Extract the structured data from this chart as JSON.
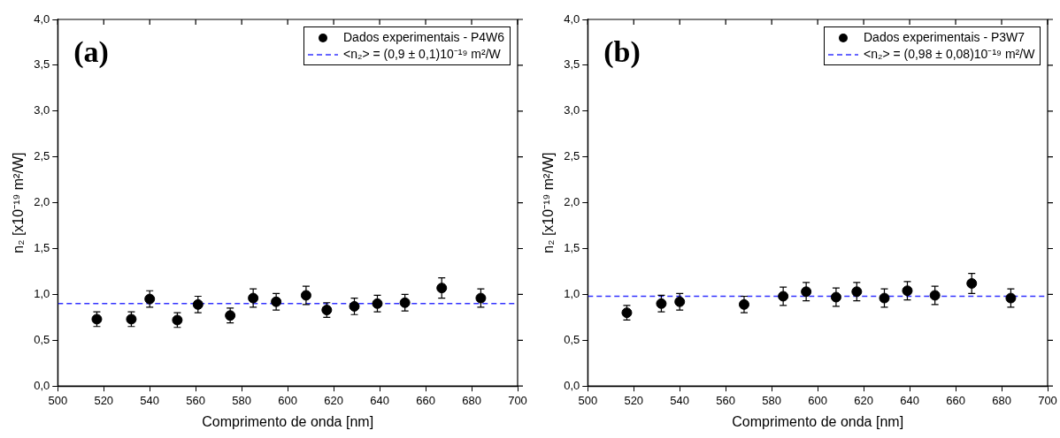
{
  "chart_data": [
    {
      "type": "scatter",
      "annotations": [
        "(a)"
      ],
      "xlabel": "Comprimento de onda [nm]",
      "ylabel": "n₂ [x10⁻¹⁹ m²/W]",
      "x": [
        517,
        532,
        540,
        552,
        561,
        575,
        585,
        595,
        608,
        617,
        629,
        639,
        651,
        667,
        684
      ],
      "series": [
        {
          "name": "Dados experimentais - P4W6",
          "color": "#000000",
          "values": [
            0.73,
            0.73,
            0.95,
            0.72,
            0.89,
            0.77,
            0.96,
            0.92,
            0.99,
            0.83,
            0.87,
            0.9,
            0.91,
            1.07,
            0.96
          ],
          "errors": [
            0.08,
            0.08,
            0.09,
            0.08,
            0.09,
            0.08,
            0.1,
            0.09,
            0.1,
            0.08,
            0.09,
            0.09,
            0.09,
            0.11,
            0.1
          ]
        }
      ],
      "ref_lines": [
        {
          "axis": "y",
          "value": 0.9,
          "label": "<n₂> = (0,9 ± 0,1)10⁻¹⁹ m²/W",
          "color": "#3333ff",
          "line_style": "dashed"
        }
      ],
      "xlim": [
        500,
        700
      ],
      "xticks": [
        500,
        520,
        540,
        560,
        580,
        600,
        620,
        640,
        660,
        680,
        700
      ],
      "ylim": [
        0,
        4
      ],
      "yticks": [
        {
          "value": 0,
          "label": "0,0"
        },
        {
          "value": 0.5,
          "label": "0,5"
        },
        {
          "value": 1,
          "label": "1,0"
        },
        {
          "value": 1.5,
          "label": "1,5"
        },
        {
          "value": 2,
          "label": "2,0"
        },
        {
          "value": 2.5,
          "label": "2,5"
        },
        {
          "value": 3,
          "label": "3,0"
        },
        {
          "value": 3.5,
          "label": "3,5"
        },
        {
          "value": 4,
          "label": "4,0"
        }
      ],
      "marker": "circle",
      "grid": false,
      "legend": "top right"
    },
    {
      "type": "scatter",
      "annotations": [
        "(b)"
      ],
      "xlabel": "Comprimento de onda [nm]",
      "ylabel": "n₂ [x10⁻¹⁹ m²/W]",
      "x": [
        517,
        532,
        540,
        568,
        585,
        595,
        608,
        617,
        629,
        639,
        651,
        667,
        684
      ],
      "series": [
        {
          "name": "Dados experimentais - P3W7",
          "color": "#000000",
          "values": [
            0.8,
            0.9,
            0.92,
            0.89,
            0.98,
            1.03,
            0.97,
            1.03,
            0.96,
            1.04,
            0.99,
            1.12,
            0.96
          ],
          "errors": [
            0.08,
            0.09,
            0.09,
            0.09,
            0.1,
            0.1,
            0.1,
            0.1,
            0.1,
            0.1,
            0.1,
            0.11,
            0.1
          ]
        }
      ],
      "ref_lines": [
        {
          "axis": "y",
          "value": 0.98,
          "label": "<n₂> = (0,98 ± 0,08)10⁻¹⁹ m²/W",
          "color": "#3333ff",
          "line_style": "dashed"
        }
      ],
      "xlim": [
        500,
        700
      ],
      "xticks": [
        500,
        520,
        540,
        560,
        580,
        600,
        620,
        640,
        660,
        680,
        700
      ],
      "ylim": [
        0,
        4
      ],
      "yticks": [
        {
          "value": 0,
          "label": "0,0"
        },
        {
          "value": 0.5,
          "label": "0,5"
        },
        {
          "value": 1,
          "label": "1,0"
        },
        {
          "value": 1.5,
          "label": "1,5"
        },
        {
          "value": 2,
          "label": "2,0"
        },
        {
          "value": 2.5,
          "label": "2,5"
        },
        {
          "value": 3,
          "label": "3,0"
        },
        {
          "value": 3.5,
          "label": "3,5"
        },
        {
          "value": 4,
          "label": "4,0"
        }
      ],
      "marker": "circle",
      "grid": false,
      "legend": "top right"
    }
  ]
}
